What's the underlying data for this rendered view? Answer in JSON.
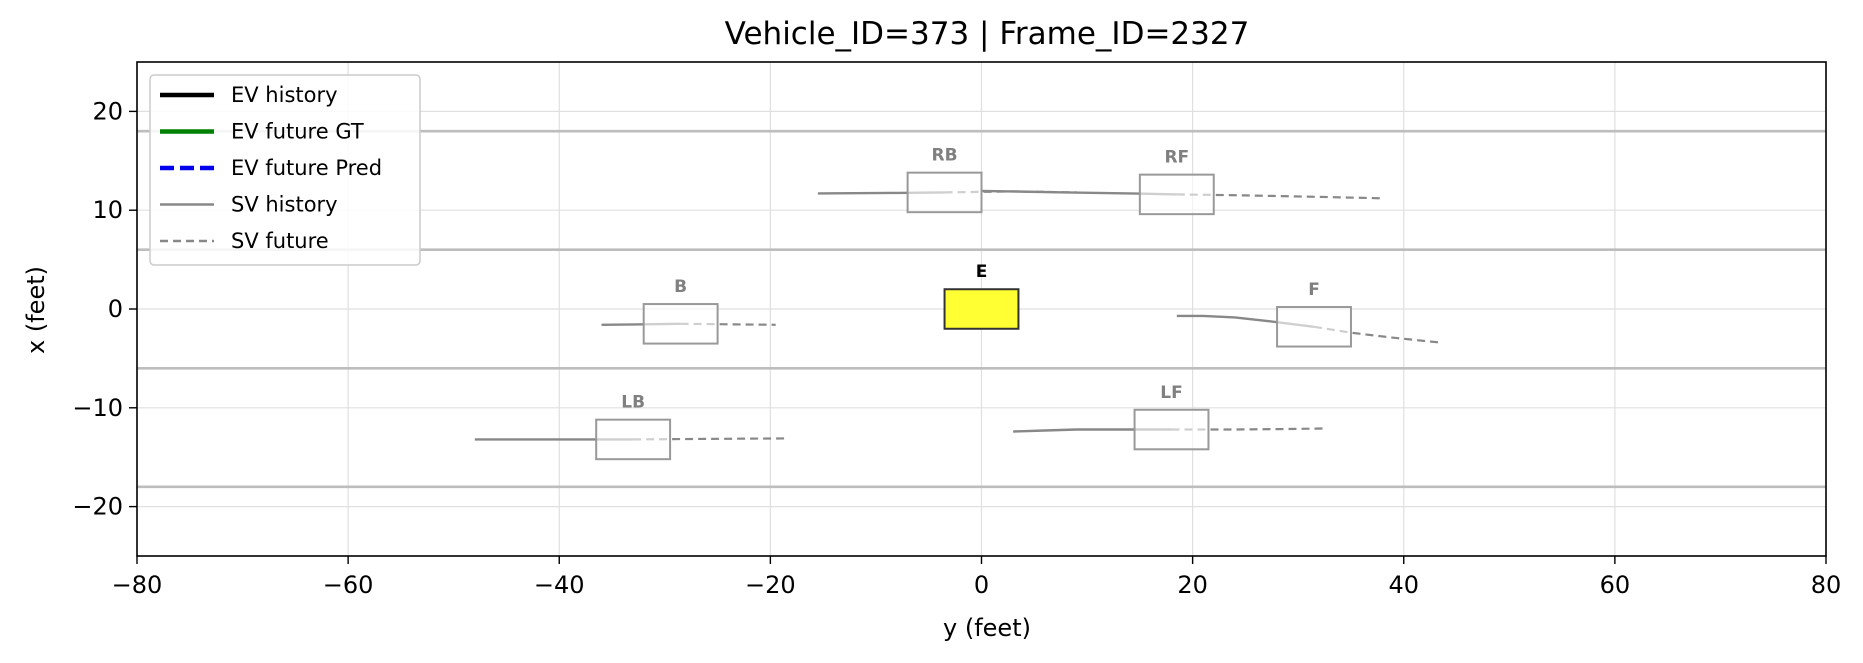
{
  "chart_data": {
    "type": "line",
    "title": "Vehicle_ID=373  |  Frame_ID=2327",
    "xlabel": "y (feet)",
    "ylabel": "x (feet)",
    "xlim": [
      -80,
      80
    ],
    "ylim": [
      -25,
      25
    ],
    "xticks": [
      -80,
      -60,
      -40,
      -20,
      0,
      20,
      40,
      60,
      80
    ],
    "yticks": [
      -20,
      -10,
      0,
      10,
      20
    ],
    "xtick_labels": [
      "−80",
      "−60",
      "−40",
      "−20",
      "0",
      "20",
      "40",
      "60",
      "80"
    ],
    "ytick_labels": [
      "−20",
      "−10",
      "0",
      "10",
      "20"
    ],
    "grid": true,
    "legend_position": "top-left",
    "lane_lines": [
      18,
      6,
      -6,
      -18
    ],
    "legend": [
      {
        "label": "EV history",
        "color": "#000000",
        "style": "solid-thick"
      },
      {
        "label": "EV future GT",
        "color": "#008000",
        "style": "solid-thick"
      },
      {
        "label": "EV future Pred",
        "color": "#0000ee",
        "style": "dashed-thick"
      },
      {
        "label": "SV history",
        "color": "#888888",
        "style": "solid"
      },
      {
        "label": "SV future",
        "color": "#888888",
        "style": "dashed"
      }
    ],
    "ego": {
      "label": "E",
      "center": [
        0,
        0
      ],
      "length": 7,
      "width": 4,
      "color": "#ffff33"
    },
    "vehicles": [
      {
        "label": "RB",
        "center": [
          -3.5,
          11.8
        ],
        "length": 7,
        "width": 4,
        "history": [
          [
            -15.5,
            11.7
          ],
          [
            -8,
            11.75
          ],
          [
            -3.5,
            11.8
          ]
        ],
        "future": [
          [
            -3.5,
            11.8
          ],
          [
            3,
            11.9
          ],
          [
            9,
            11.8
          ]
        ]
      },
      {
        "label": "RF",
        "center": [
          18.5,
          11.6
        ],
        "length": 7,
        "width": 4,
        "history": [
          [
            0,
            11.95
          ],
          [
            8,
            11.8
          ],
          [
            14,
            11.7
          ],
          [
            18.5,
            11.6
          ]
        ],
        "future": [
          [
            18.5,
            11.6
          ],
          [
            25,
            11.5
          ],
          [
            32,
            11.35
          ],
          [
            38,
            11.2
          ]
        ]
      },
      {
        "label": "B",
        "center": [
          -28.5,
          -1.5
        ],
        "length": 7,
        "width": 4,
        "history": [
          [
            -36,
            -1.6
          ],
          [
            -32,
            -1.55
          ],
          [
            -28.5,
            -1.5
          ]
        ],
        "future": [
          [
            -28.5,
            -1.5
          ],
          [
            -24,
            -1.55
          ],
          [
            -19.5,
            -1.6
          ]
        ]
      },
      {
        "label": "F",
        "center": [
          31.5,
          -1.8
        ],
        "length": 7,
        "width": 4,
        "history": [
          [
            18.5,
            -0.7
          ],
          [
            21,
            -0.7
          ],
          [
            24,
            -0.85
          ],
          [
            27,
            -1.2
          ],
          [
            31.5,
            -1.8
          ]
        ],
        "future": [
          [
            31.5,
            -1.8
          ],
          [
            35,
            -2.4
          ],
          [
            39,
            -2.9
          ],
          [
            43.5,
            -3.4
          ]
        ]
      },
      {
        "label": "LB",
        "center": [
          -33,
          -13.2
        ],
        "length": 7,
        "width": 4,
        "history": [
          [
            -48,
            -13.2
          ],
          [
            -40,
            -13.2
          ],
          [
            -33,
            -13.2
          ]
        ],
        "future": [
          [
            -33,
            -13.2
          ],
          [
            -26,
            -13.15
          ],
          [
            -18.5,
            -13.1
          ]
        ]
      },
      {
        "label": "LF",
        "center": [
          18,
          -12.2
        ],
        "length": 7,
        "width": 4,
        "history": [
          [
            3,
            -12.4
          ],
          [
            6,
            -12.3
          ],
          [
            9,
            -12.2
          ],
          [
            13,
            -12.2
          ],
          [
            18,
            -12.2
          ]
        ],
        "future": [
          [
            18,
            -12.2
          ],
          [
            24,
            -12.2
          ],
          [
            29,
            -12.15
          ],
          [
            32.5,
            -12.1
          ]
        ]
      }
    ]
  }
}
